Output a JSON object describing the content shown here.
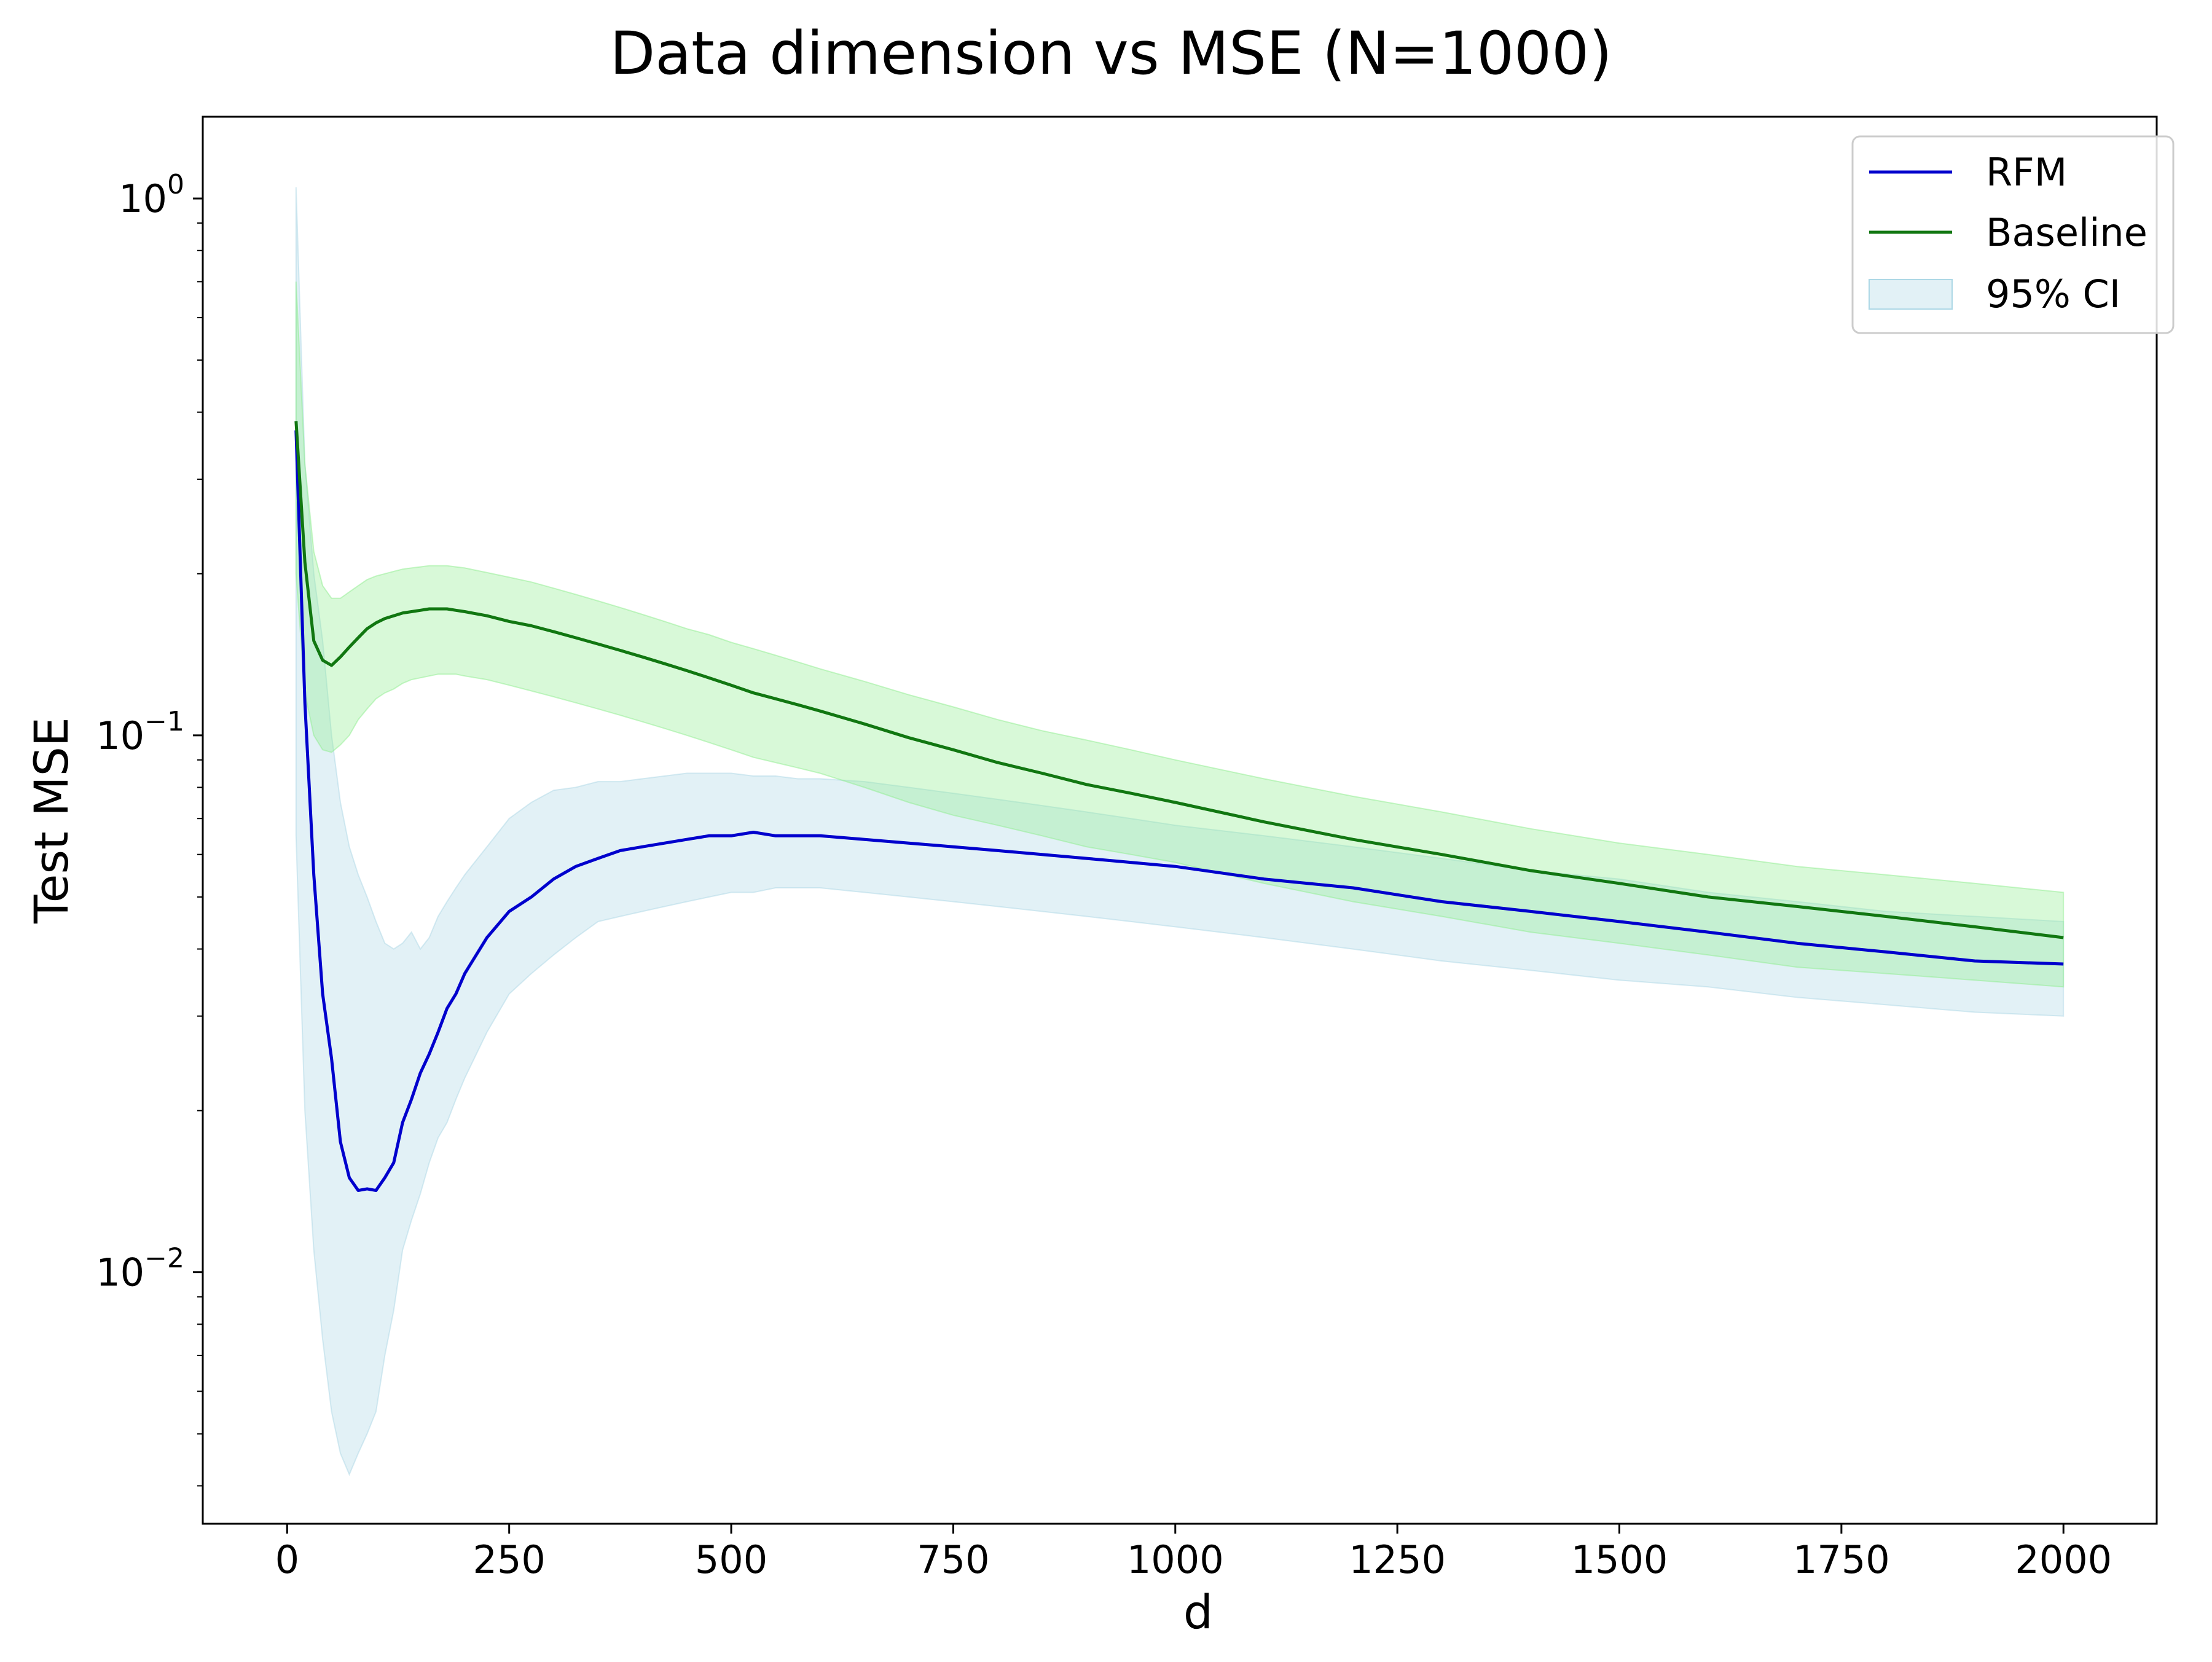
{
  "chart_data": {
    "type": "line",
    "title": "Data dimension vs MSE (N=1000)",
    "xlabel": "d",
    "ylabel": "Test MSE",
    "yscale": "log",
    "xlim": [
      -95,
      2105
    ],
    "ylim": [
      0.0034,
      1.42
    ],
    "grid": false,
    "legend_position": "top-right",
    "xticks": [
      0,
      250,
      500,
      750,
      1000,
      1250,
      1500,
      1750,
      2000
    ],
    "xtick_labels": [
      "0",
      "250",
      "500",
      "750",
      "1000",
      "1250",
      "1500",
      "1750",
      "2000"
    ],
    "yticks": [
      {
        "value": 1,
        "base": "10",
        "exp": "0"
      },
      {
        "value": 0.1,
        "base": "10",
        "exp": "−1"
      },
      {
        "value": 0.01,
        "base": "10",
        "exp": "−2"
      }
    ],
    "legend": [
      {
        "label": "RFM",
        "kind": "line",
        "color": "#0000cd"
      },
      {
        "label": "Baseline",
        "kind": "line",
        "color": "#117711"
      },
      {
        "label": "95% CI",
        "kind": "band",
        "color": "#add8e6"
      }
    ],
    "series": [
      {
        "name": "RFM",
        "color": "#0000cd",
        "x": [
          10,
          20,
          30,
          40,
          50,
          60,
          70,
          80,
          90,
          100,
          110,
          120,
          130,
          140,
          150,
          160,
          170,
          180,
          190,
          200,
          225,
          250,
          275,
          300,
          325,
          350,
          375,
          400,
          425,
          450,
          475,
          500,
          525,
          550,
          575,
          600,
          650,
          700,
          750,
          800,
          850,
          900,
          950,
          1000,
          1100,
          1200,
          1300,
          1400,
          1500,
          1600,
          1700,
          1800,
          1900,
          2000
        ],
        "y": [
          0.37,
          0.115,
          0.055,
          0.033,
          0.025,
          0.0175,
          0.015,
          0.0142,
          0.0143,
          0.0142,
          0.015,
          0.016,
          0.019,
          0.021,
          0.0235,
          0.0255,
          0.028,
          0.031,
          0.033,
          0.036,
          0.042,
          0.047,
          0.05,
          0.054,
          0.057,
          0.059,
          0.061,
          0.062,
          0.063,
          0.064,
          0.065,
          0.065,
          0.066,
          0.065,
          0.065,
          0.065,
          0.064,
          0.063,
          0.062,
          0.061,
          0.06,
          0.059,
          0.058,
          0.057,
          0.054,
          0.052,
          0.049,
          0.047,
          0.045,
          0.043,
          0.041,
          0.0395,
          0.038,
          0.0375
        ],
        "ci_lower": [
          0.065,
          0.02,
          0.011,
          0.0075,
          0.0055,
          0.0046,
          0.0042,
          0.0046,
          0.005,
          0.0055,
          0.007,
          0.0085,
          0.011,
          0.0125,
          0.014,
          0.016,
          0.0178,
          0.019,
          0.021,
          0.023,
          0.028,
          0.033,
          0.036,
          0.039,
          0.042,
          0.045,
          0.046,
          0.047,
          0.048,
          0.049,
          0.05,
          0.051,
          0.051,
          0.052,
          0.052,
          0.052,
          0.051,
          0.05,
          0.049,
          0.048,
          0.047,
          0.046,
          0.045,
          0.044,
          0.042,
          0.04,
          0.038,
          0.0365,
          0.035,
          0.034,
          0.0325,
          0.0315,
          0.0305,
          0.03
        ],
        "ci_upper": [
          1.05,
          0.32,
          0.2,
          0.15,
          0.1,
          0.075,
          0.062,
          0.055,
          0.05,
          0.045,
          0.041,
          0.04,
          0.041,
          0.043,
          0.04,
          0.042,
          0.046,
          0.049,
          0.052,
          0.055,
          0.062,
          0.07,
          0.075,
          0.079,
          0.08,
          0.082,
          0.082,
          0.083,
          0.084,
          0.085,
          0.085,
          0.085,
          0.084,
          0.084,
          0.083,
          0.083,
          0.082,
          0.08,
          0.078,
          0.076,
          0.074,
          0.072,
          0.07,
          0.068,
          0.065,
          0.062,
          0.059,
          0.056,
          0.054,
          0.051,
          0.049,
          0.047,
          0.046,
          0.045
        ]
      },
      {
        "name": "Baseline",
        "color": "#117711",
        "x": [
          10,
          20,
          30,
          40,
          50,
          60,
          70,
          80,
          90,
          100,
          110,
          120,
          130,
          140,
          150,
          160,
          170,
          180,
          190,
          200,
          225,
          250,
          275,
          300,
          325,
          350,
          375,
          400,
          425,
          450,
          475,
          500,
          525,
          550,
          575,
          600,
          650,
          700,
          750,
          800,
          850,
          900,
          950,
          1000,
          1100,
          1200,
          1300,
          1400,
          1500,
          1600,
          1700,
          1800,
          1900,
          2000
        ],
        "y": [
          0.385,
          0.21,
          0.15,
          0.138,
          0.135,
          0.14,
          0.146,
          0.152,
          0.158,
          0.162,
          0.165,
          0.167,
          0.169,
          0.17,
          0.171,
          0.172,
          0.172,
          0.172,
          0.171,
          0.17,
          0.167,
          0.163,
          0.16,
          0.156,
          0.152,
          0.148,
          0.144,
          0.14,
          0.136,
          0.132,
          0.128,
          0.124,
          0.12,
          0.117,
          0.114,
          0.111,
          0.105,
          0.099,
          0.094,
          0.089,
          0.085,
          0.081,
          0.078,
          0.075,
          0.069,
          0.064,
          0.06,
          0.056,
          0.053,
          0.05,
          0.048,
          0.046,
          0.044,
          0.042
        ],
        "ci_lower": [
          0.2,
          0.12,
          0.1,
          0.094,
          0.093,
          0.096,
          0.1,
          0.107,
          0.112,
          0.117,
          0.12,
          0.122,
          0.125,
          0.127,
          0.128,
          0.129,
          0.13,
          0.13,
          0.13,
          0.129,
          0.127,
          0.124,
          0.121,
          0.118,
          0.115,
          0.112,
          0.109,
          0.106,
          0.103,
          0.1,
          0.097,
          0.094,
          0.091,
          0.089,
          0.087,
          0.085,
          0.08,
          0.075,
          0.071,
          0.068,
          0.065,
          0.062,
          0.06,
          0.058,
          0.053,
          0.049,
          0.046,
          0.043,
          0.041,
          0.039,
          0.037,
          0.036,
          0.035,
          0.034
        ],
        "ci_upper": [
          0.7,
          0.32,
          0.22,
          0.19,
          0.18,
          0.18,
          0.185,
          0.19,
          0.195,
          0.198,
          0.2,
          0.202,
          0.204,
          0.205,
          0.206,
          0.207,
          0.207,
          0.207,
          0.206,
          0.205,
          0.201,
          0.197,
          0.193,
          0.188,
          0.183,
          0.178,
          0.173,
          0.168,
          0.163,
          0.158,
          0.154,
          0.149,
          0.145,
          0.141,
          0.137,
          0.133,
          0.126,
          0.119,
          0.113,
          0.107,
          0.102,
          0.098,
          0.094,
          0.09,
          0.083,
          0.077,
          0.072,
          0.067,
          0.063,
          0.06,
          0.057,
          0.055,
          0.053,
          0.051
        ]
      }
    ]
  }
}
